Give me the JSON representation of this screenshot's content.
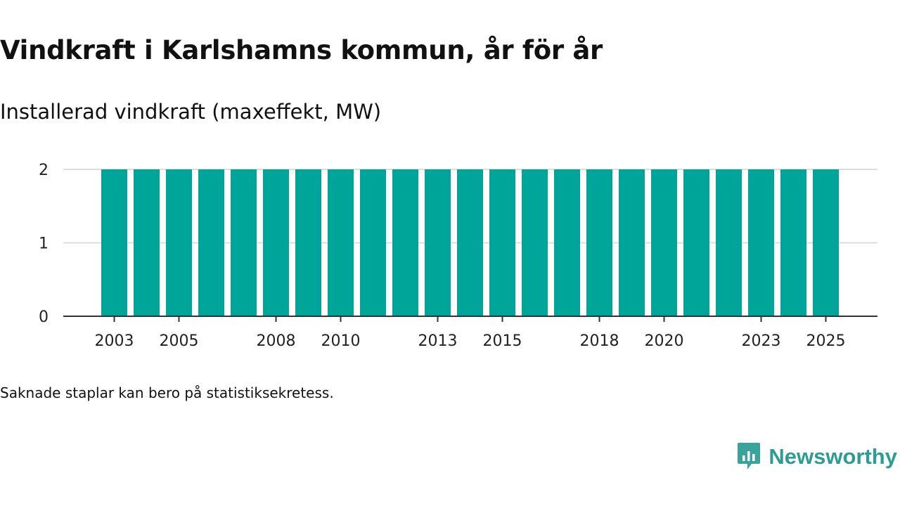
{
  "header": {
    "title": "Vindkraft i Karlshamns kommun, år för år",
    "subtitle": "Installerad vindkraft (maxeffekt, MW)"
  },
  "footer": {
    "note": "Saknade staplar kan bero på statistiksekretess.",
    "brand": "Newsworthy",
    "brand_icon": "newsworthy-logo-icon"
  },
  "colors": {
    "bar": "#00a59a",
    "grid": "#dddddd",
    "axis": "#333333",
    "brand": "#2e9c94"
  },
  "chart_data": {
    "type": "bar",
    "title": "Installerad vindkraft (maxeffekt, MW)",
    "xlabel": "",
    "ylabel": "",
    "categories": [
      "2003",
      "2004",
      "2005",
      "2006",
      "2007",
      "2008",
      "2009",
      "2010",
      "2011",
      "2012",
      "2013",
      "2014",
      "2015",
      "2016",
      "2017",
      "2018",
      "2019",
      "2020",
      "2021",
      "2022",
      "2023",
      "2024",
      "2025"
    ],
    "values": [
      2,
      2,
      2,
      2,
      2,
      2,
      2,
      2,
      2,
      2,
      2,
      2,
      2,
      2,
      2,
      2,
      2,
      2,
      2,
      2,
      2,
      2,
      2
    ],
    "shown_x_ticks": [
      "2003",
      "2005",
      "2008",
      "2010",
      "2013",
      "2015",
      "2018",
      "2020",
      "2023",
      "2025"
    ],
    "y_ticks": [
      0,
      1,
      2
    ],
    "ylim": [
      0,
      2
    ],
    "grid": true
  }
}
